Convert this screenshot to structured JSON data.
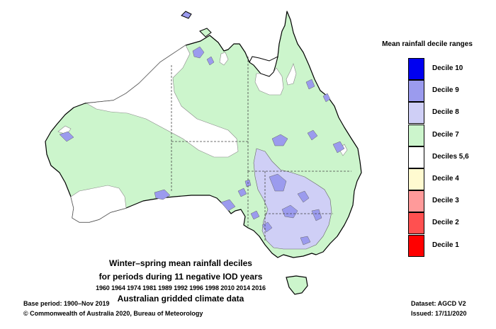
{
  "legend": {
    "title": "Mean rainfall decile ranges",
    "items": [
      {
        "label": "Decile 10",
        "color": "#0000f0"
      },
      {
        "label": "Decile 9",
        "color": "#9b9bee"
      },
      {
        "label": "Decile 8",
        "color": "#cfcff6"
      },
      {
        "label": "Decile 7",
        "color": "#ccf5cc"
      },
      {
        "label": "Deciles 5,6",
        "color": "#ffffff"
      },
      {
        "label": "Decile 4",
        "color": "#fffad0"
      },
      {
        "label": "Decile 3",
        "color": "#ff9a9a"
      },
      {
        "label": "Decile 2",
        "color": "#ff5050"
      },
      {
        "label": "Decile 1",
        "color": "#ff0000"
      }
    ]
  },
  "title": {
    "line1": "Winter–spring mean rainfall deciles",
    "line2": "for periods during 11 negative IOD years",
    "years": "1960 1964 1974 1981 1989 1992 1996 1998 2010 2014 2016",
    "source": "Australian gridded climate data"
  },
  "footer": {
    "base_period": "Base period: 1900–Nov 2019",
    "copyright": "© Commonwealth of Australia 2020, Bureau of Meteorology",
    "dataset": "Dataset: AGCD V2",
    "issued": "Issued: 17/11/2020"
  },
  "colors": {
    "decile7": "#ccf5cc",
    "decile8": "#cfcff6",
    "decile9": "#9b9bee",
    "outline": "#000000"
  }
}
